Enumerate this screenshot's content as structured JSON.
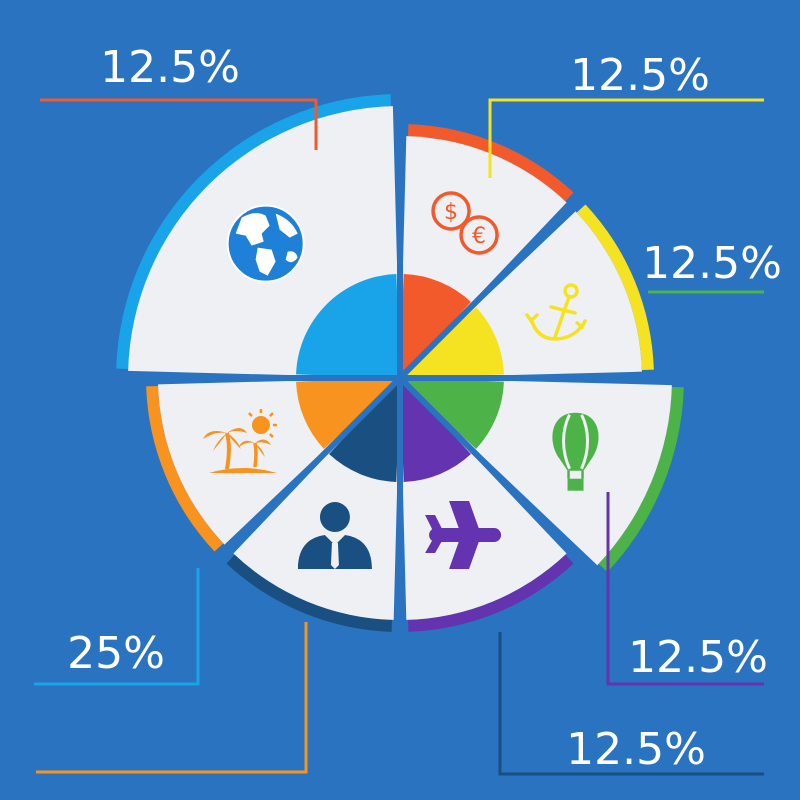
{
  "chart_data": {
    "type": "pie",
    "title": "",
    "center": "",
    "slices": [
      {
        "id": "money",
        "label": "12.5%",
        "value": 12.5,
        "color": "#f25a2b",
        "icon": "money-icon"
      },
      {
        "id": "anchor",
        "label": "12.5%",
        "value": 12.5,
        "color": "#f5e322",
        "icon": "anchor-icon"
      },
      {
        "id": "balloon",
        "label": "12.5%",
        "value": 12.5,
        "color": "#4db348",
        "icon": "hot-air-balloon-icon"
      },
      {
        "id": "plane",
        "label": "12.5%",
        "value": 12.5,
        "color": "#6433b0",
        "icon": "airplane-icon"
      },
      {
        "id": "business",
        "label": "12.5%",
        "value": 12.5,
        "color": "#1a4f82",
        "icon": "businessman-icon"
      },
      {
        "id": "beach",
        "label": "12.5%",
        "value": 12.5,
        "color": "#f7931e",
        "icon": "palm-beach-icon"
      },
      {
        "id": "globe",
        "label": "25%",
        "value": 25,
        "color": "#19a3e8",
        "icon": "globe-icon"
      }
    ]
  }
}
